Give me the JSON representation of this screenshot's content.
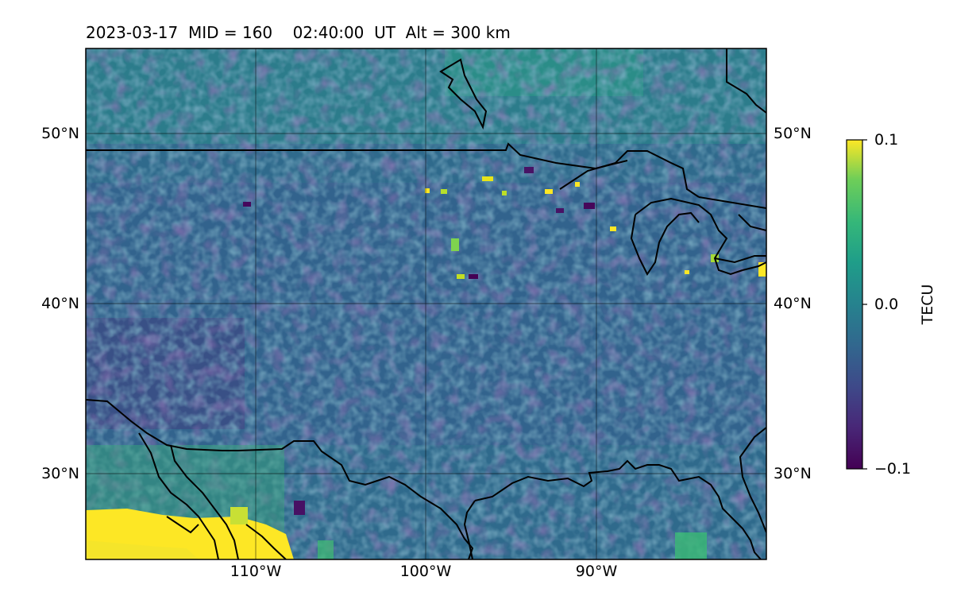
{
  "header": {
    "title": "2023-03-17  MID = 160    02:40:00  UT  Alt = 300 km"
  },
  "map": {
    "lat_labels_left": [
      "50°N",
      "40°N",
      "30°N"
    ],
    "lat_labels_right": [
      "50°N",
      "40°N",
      "30°N"
    ],
    "lon_labels": [
      "110°W",
      "100°W",
      "90°W"
    ],
    "extent": {
      "lon_min": -120,
      "lon_max": -80,
      "lat_min": 25,
      "lat_max": 55
    },
    "gridlines": {
      "lon": [
        -110,
        -100,
        -90
      ],
      "lat": [
        50,
        40,
        30
      ]
    },
    "colormap": "viridis",
    "variable": "TECU",
    "background_value_range": [
      -0.04,
      0.03
    ]
  },
  "colorbar": {
    "label": "TECU",
    "ticks": [
      "0.1",
      "0.0",
      "−0.1"
    ],
    "min": -0.1,
    "max": 0.1
  }
}
